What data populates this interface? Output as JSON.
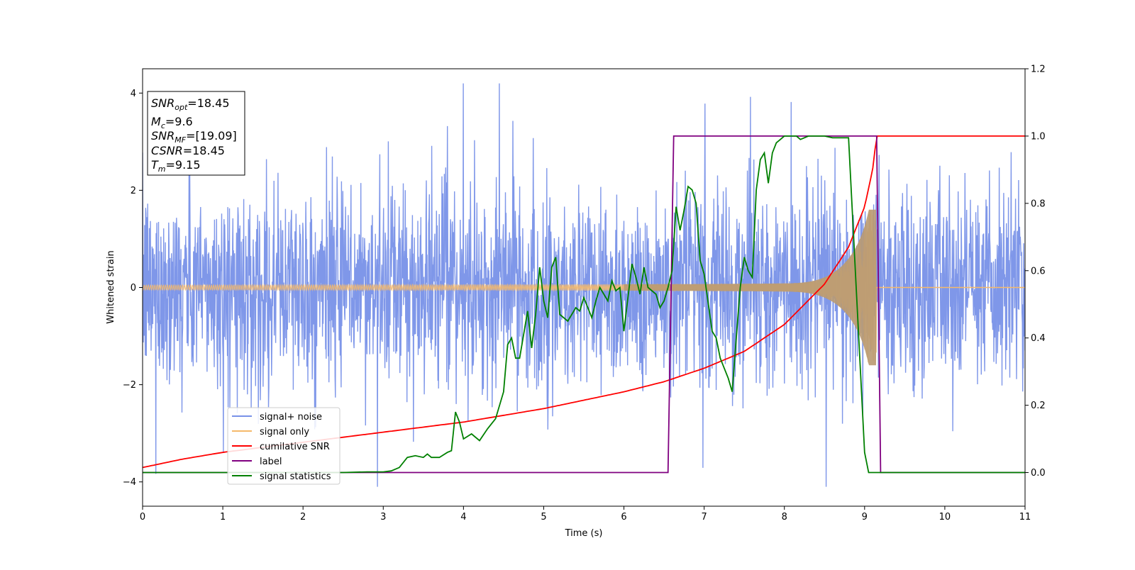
{
  "chart_data": {
    "type": "line",
    "title": "",
    "xlabel": "Time (s)",
    "ylabel": "Whitened strain",
    "y2label": "",
    "xlim": [
      0,
      11
    ],
    "ylim": [
      -4.5,
      4.5
    ],
    "y2lim": [
      -0.1,
      1.2
    ],
    "grid": false,
    "legend_position": "lower-left",
    "xticks": [
      0,
      1,
      2,
      3,
      4,
      5,
      6,
      7,
      8,
      9,
      10,
      11
    ],
    "yticks": [
      -4,
      -2,
      0,
      2,
      4
    ],
    "y2ticks": [
      "0.0",
      "0.2",
      "0.4",
      "0.6",
      "0.8",
      "1.0",
      "1.2"
    ],
    "info_box": {
      "lines": [
        {
          "base": "SNR",
          "sub": "opt",
          "value": "=18.45"
        },
        {
          "base": "M",
          "sub": "c",
          "value": "=9.6"
        },
        {
          "base": "SNR",
          "sub": "MF",
          "value": "=[19.09]"
        },
        {
          "base": "CSNR",
          "sub": "",
          "value": "=18.45"
        },
        {
          "base": "T",
          "sub": "m",
          "value": "=9.15"
        }
      ]
    },
    "series": [
      {
        "name": "signal+ noise",
        "axis": "left",
        "color": "#7891e8",
        "kind": "noise",
        "noise_std": 1.0,
        "peak_amplitude": 3.3,
        "merger_time": 9.15
      },
      {
        "name": "signal only",
        "axis": "left",
        "color": "#f5b96b",
        "kind": "chirp",
        "merger_time": 9.15,
        "amplitude_start": 0.05,
        "amplitude_peak": 1.6
      },
      {
        "name": "cumilative SNR",
        "axis": "right",
        "color": "#ff0000",
        "x": [
          0,
          0.5,
          1,
          2,
          3,
          4,
          5,
          6,
          6.5,
          7,
          7.5,
          8,
          8.5,
          8.8,
          9.0,
          9.1,
          9.15,
          11
        ],
        "y": [
          0.015,
          0.04,
          0.06,
          0.09,
          0.12,
          0.15,
          0.19,
          0.24,
          0.27,
          0.31,
          0.36,
          0.44,
          0.56,
          0.67,
          0.79,
          0.9,
          1.0,
          1.0
        ]
      },
      {
        "name": "label",
        "axis": "right",
        "color": "#800080",
        "x": [
          0,
          6.55,
          6.62,
          9.15,
          9.2,
          11
        ],
        "y": [
          0,
          0,
          1,
          1,
          0,
          0
        ]
      },
      {
        "name": "signal statistics",
        "axis": "right",
        "color": "#008000",
        "x": [
          0,
          1,
          2,
          2.5,
          2.8,
          3.0,
          3.1,
          3.2,
          3.3,
          3.4,
          3.5,
          3.55,
          3.6,
          3.7,
          3.8,
          3.85,
          3.9,
          3.95,
          4.0,
          4.1,
          4.2,
          4.3,
          4.4,
          4.5,
          4.55,
          4.6,
          4.65,
          4.7,
          4.8,
          4.85,
          4.9,
          4.95,
          5.0,
          5.05,
          5.1,
          5.15,
          5.2,
          5.3,
          5.4,
          5.45,
          5.5,
          5.6,
          5.65,
          5.7,
          5.8,
          5.85,
          5.9,
          5.95,
          6.0,
          6.1,
          6.15,
          6.2,
          6.25,
          6.3,
          6.4,
          6.45,
          6.5,
          6.55,
          6.6,
          6.65,
          6.7,
          6.75,
          6.8,
          6.85,
          6.9,
          6.95,
          7.0,
          7.1,
          7.15,
          7.2,
          7.3,
          7.35,
          7.4,
          7.45,
          7.5,
          7.55,
          7.6,
          7.65,
          7.7,
          7.75,
          7.8,
          7.85,
          7.9,
          7.95,
          8.0,
          8.05,
          8.1,
          8.15,
          8.2,
          8.3,
          8.4,
          8.5,
          8.6,
          8.8,
          9.0,
          9.05,
          9.1,
          9.15,
          9.2,
          9.25,
          11
        ],
        "y": [
          0.0,
          0.0,
          0.0,
          0.0,
          0.002,
          0.002,
          0.005,
          0.015,
          0.045,
          0.05,
          0.045,
          0.055,
          0.045,
          0.045,
          0.06,
          0.065,
          0.18,
          0.15,
          0.1,
          0.115,
          0.095,
          0.13,
          0.16,
          0.24,
          0.38,
          0.4,
          0.34,
          0.34,
          0.48,
          0.37,
          0.47,
          0.61,
          0.51,
          0.46,
          0.61,
          0.64,
          0.47,
          0.45,
          0.49,
          0.48,
          0.52,
          0.46,
          0.51,
          0.55,
          0.51,
          0.57,
          0.54,
          0.55,
          0.42,
          0.62,
          0.58,
          0.53,
          0.61,
          0.55,
          0.53,
          0.49,
          0.51,
          0.55,
          0.6,
          0.79,
          0.72,
          0.78,
          0.85,
          0.84,
          0.8,
          0.63,
          0.59,
          0.42,
          0.4,
          0.34,
          0.28,
          0.24,
          0.4,
          0.55,
          0.64,
          0.6,
          0.58,
          0.84,
          0.93,
          0.95,
          0.86,
          0.95,
          0.98,
          0.99,
          1.0,
          1.0,
          1.0,
          1.0,
          0.99,
          1.0,
          1.0,
          1.0,
          0.995,
          0.995,
          0.06,
          0.0,
          0.0,
          0.0,
          0.0,
          0.0,
          0.0
        ]
      }
    ]
  }
}
